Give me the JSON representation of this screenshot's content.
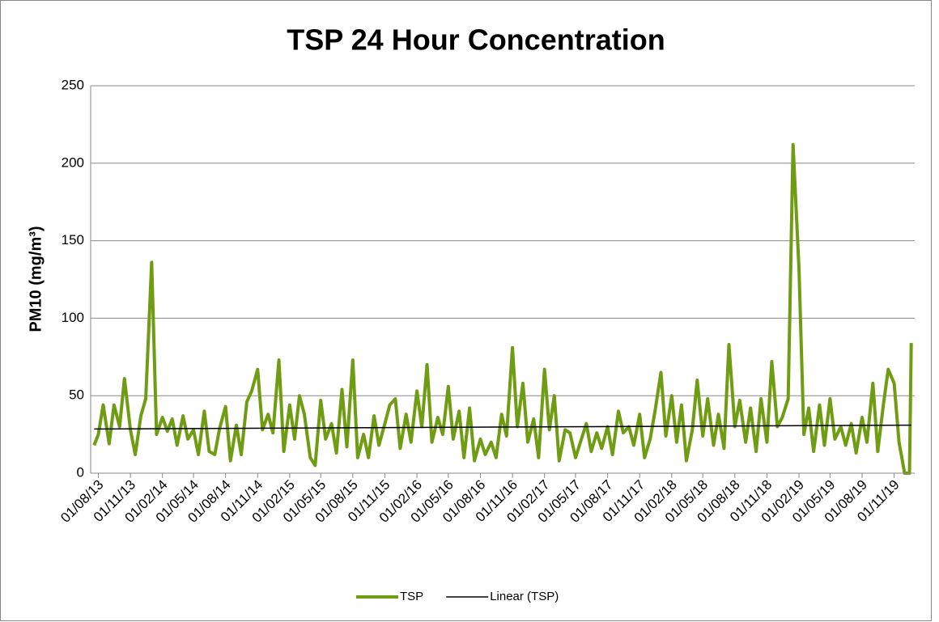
{
  "chart_data": {
    "type": "line",
    "title": "TSP 24 Hour Concentration",
    "y_label": "PM10 (mg/m³)",
    "ylim": [
      0,
      250
    ],
    "yticks": [
      0,
      50,
      100,
      150,
      200,
      250
    ],
    "grid": true,
    "xlim": [
      "10/07/13",
      "30/12/19"
    ],
    "xticks": [
      "01/08/13",
      "01/11/13",
      "01/02/14",
      "01/05/14",
      "01/08/14",
      "01/11/14",
      "01/02/15",
      "01/05/15",
      "01/08/15",
      "01/11/15",
      "01/02/16",
      "01/05/16",
      "01/08/16",
      "01/11/16",
      "01/02/17",
      "01/05/17",
      "01/08/17",
      "01/11/17",
      "01/02/18",
      "01/05/18",
      "01/08/18",
      "01/11/18",
      "01/02/19",
      "01/05/19",
      "01/08/19",
      "01/11/19"
    ],
    "legend": "bottom",
    "series": [
      {
        "name": "TSP",
        "color": "#6f9c12",
        "x": [
          "20/07/13",
          "01/08/13",
          "15/08/13",
          "01/09/13",
          "15/09/13",
          "01/10/13",
          "15/10/13",
          "01/11/13",
          "15/11/13",
          "01/12/13",
          "15/12/13",
          "01/01/14",
          "15/01/14",
          "01/02/14",
          "15/02/14",
          "01/03/14",
          "15/03/14",
          "01/04/14",
          "15/04/14",
          "01/05/14",
          "15/05/14",
          "01/06/14",
          "15/06/14",
          "01/07/14",
          "15/07/14",
          "01/08/14",
          "15/08/14",
          "01/09/14",
          "15/09/14",
          "01/10/14",
          "15/10/14",
          "01/11/14",
          "15/11/14",
          "01/12/14",
          "15/12/14",
          "01/01/15",
          "15/01/15",
          "01/02/15",
          "15/02/15",
          "01/03/15",
          "15/03/15",
          "01/04/15",
          "15/04/15",
          "01/05/15",
          "15/05/15",
          "01/06/15",
          "15/06/15",
          "01/07/15",
          "15/07/15",
          "01/08/15",
          "15/08/15",
          "01/09/15",
          "15/09/15",
          "01/10/15",
          "15/10/15",
          "01/11/15",
          "15/11/15",
          "01/12/15",
          "15/12/15",
          "01/01/16",
          "15/01/16",
          "01/02/16",
          "15/02/16",
          "01/03/16",
          "15/03/16",
          "01/04/16",
          "15/04/16",
          "01/05/16",
          "15/05/16",
          "01/06/16",
          "15/06/16",
          "01/07/16",
          "15/07/16",
          "01/08/16",
          "15/08/16",
          "01/09/16",
          "15/09/16",
          "01/10/16",
          "15/10/16",
          "01/11/16",
          "15/11/16",
          "01/12/16",
          "15/12/16",
          "01/01/17",
          "15/01/17",
          "01/02/17",
          "15/02/17",
          "01/03/17",
          "15/03/17",
          "01/04/17",
          "15/04/17",
          "01/05/17",
          "15/05/17",
          "01/06/17",
          "15/06/17",
          "01/07/17",
          "15/07/17",
          "01/08/17",
          "15/08/17",
          "01/09/17",
          "15/09/17",
          "01/10/17",
          "15/10/17",
          "01/11/17",
          "15/11/17",
          "01/12/17",
          "15/12/17",
          "01/01/18",
          "15/01/18",
          "01/02/18",
          "15/02/18",
          "01/03/18",
          "15/03/18",
          "01/04/18",
          "15/04/18",
          "01/05/18",
          "15/05/18",
          "01/06/18",
          "15/06/18",
          "01/07/18",
          "15/07/18",
          "01/08/18",
          "15/08/18",
          "01/09/18",
          "15/09/18",
          "01/10/18",
          "15/10/18",
          "01/11/18",
          "15/11/18",
          "01/12/18",
          "15/12/18",
          "01/01/19",
          "15/01/19",
          "01/02/19",
          "15/02/19",
          "01/03/19",
          "15/03/19",
          "01/04/19",
          "15/04/19",
          "01/05/19",
          "15/05/19",
          "01/06/19",
          "15/06/19",
          "01/07/19",
          "15/07/19",
          "01/08/19",
          "15/08/19",
          "01/09/19",
          "15/09/19",
          "01/10/19",
          "15/10/19",
          "01/11/19",
          "15/11/19",
          "01/12/19",
          "15/12/19",
          "20/12/19"
        ],
        "values": [
          18,
          25,
          44,
          19,
          44,
          30,
          61,
          28,
          12,
          37,
          48,
          136,
          25,
          36,
          27,
          35,
          18,
          37,
          22,
          28,
          12,
          40,
          14,
          12,
          29,
          43,
          8,
          31,
          12,
          46,
          53,
          67,
          28,
          38,
          26,
          73,
          14,
          44,
          22,
          50,
          38,
          10,
          5,
          47,
          22,
          32,
          13,
          54,
          17,
          73,
          10,
          25,
          10,
          37,
          18,
          32,
          44,
          48,
          16,
          38,
          20,
          53,
          30,
          70,
          20,
          36,
          25,
          56,
          22,
          40,
          10,
          42,
          8,
          22,
          12,
          20,
          10,
          38,
          24,
          81,
          30,
          58,
          20,
          35,
          10,
          67,
          28,
          50,
          8,
          28,
          26,
          10,
          20,
          32,
          14,
          26,
          16,
          30,
          12,
          40,
          26,
          30,
          18,
          38,
          10,
          22,
          40,
          65,
          24,
          50,
          20,
          44,
          8,
          28,
          60,
          24,
          48,
          18,
          38,
          16,
          83,
          30,
          47,
          20,
          42,
          14,
          48,
          20,
          72,
          30,
          36,
          48,
          212,
          132,
          25,
          42,
          14,
          44,
          18,
          48,
          22,
          30,
          18,
          32,
          13,
          36,
          20,
          58,
          14,
          44,
          67,
          58,
          20,
          0,
          0,
          84
        ]
      },
      {
        "name": "Linear (TSP)",
        "color": "#000000",
        "x": [
          "20/07/13",
          "20/12/19"
        ],
        "values": [
          28.5,
          31
        ]
      }
    ]
  }
}
